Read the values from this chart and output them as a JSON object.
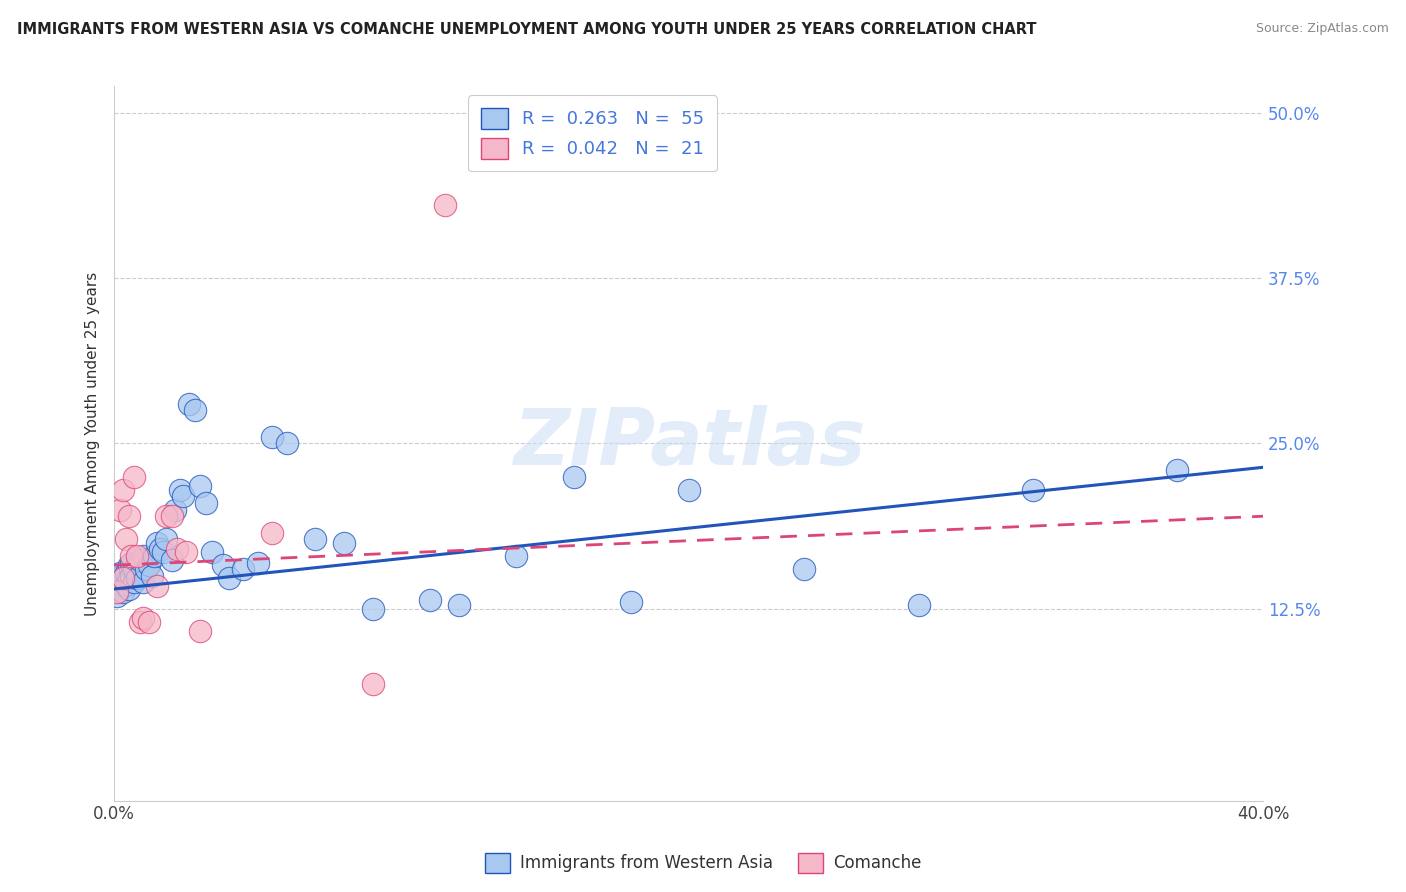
{
  "title": "IMMIGRANTS FROM WESTERN ASIA VS COMANCHE UNEMPLOYMENT AMONG YOUTH UNDER 25 YEARS CORRELATION CHART",
  "source": "Source: ZipAtlas.com",
  "ylabel": "Unemployment Among Youth under 25 years",
  "xlim": [
    0.0,
    0.4
  ],
  "ylim": [
    -0.02,
    0.52
  ],
  "xticks": [
    0.0,
    0.05,
    0.1,
    0.15,
    0.2,
    0.25,
    0.3,
    0.35,
    0.4
  ],
  "yticks_right": [
    0.125,
    0.25,
    0.375,
    0.5
  ],
  "ytick_right_labels": [
    "12.5%",
    "25.0%",
    "37.5%",
    "50.0%"
  ],
  "series1_color": "#a8c8f0",
  "series2_color": "#f5b8c8",
  "trendline1_color": "#2255bb",
  "trendline2_color": "#dd4477",
  "series1_name": "Immigrants from Western Asia",
  "series2_name": "Comanche",
  "blue_scatter_x": [
    0.001,
    0.001,
    0.002,
    0.002,
    0.003,
    0.003,
    0.004,
    0.004,
    0.005,
    0.005,
    0.005,
    0.006,
    0.006,
    0.007,
    0.007,
    0.008,
    0.009,
    0.01,
    0.01,
    0.011,
    0.012,
    0.013,
    0.014,
    0.015,
    0.016,
    0.017,
    0.018,
    0.02,
    0.021,
    0.023,
    0.024,
    0.026,
    0.028,
    0.03,
    0.032,
    0.034,
    0.038,
    0.04,
    0.045,
    0.05,
    0.055,
    0.06,
    0.07,
    0.08,
    0.09,
    0.11,
    0.12,
    0.14,
    0.16,
    0.18,
    0.2,
    0.24,
    0.28,
    0.32,
    0.37
  ],
  "blue_scatter_y": [
    0.135,
    0.148,
    0.143,
    0.152,
    0.138,
    0.148,
    0.143,
    0.152,
    0.14,
    0.148,
    0.158,
    0.15,
    0.16,
    0.145,
    0.155,
    0.148,
    0.162,
    0.145,
    0.165,
    0.155,
    0.158,
    0.15,
    0.165,
    0.175,
    0.17,
    0.168,
    0.178,
    0.162,
    0.2,
    0.215,
    0.21,
    0.28,
    0.275,
    0.218,
    0.205,
    0.168,
    0.158,
    0.148,
    0.155,
    0.16,
    0.255,
    0.25,
    0.178,
    0.175,
    0.125,
    0.132,
    0.128,
    0.165,
    0.225,
    0.13,
    0.215,
    0.155,
    0.128,
    0.215,
    0.23
  ],
  "pink_scatter_x": [
    0.001,
    0.002,
    0.003,
    0.003,
    0.004,
    0.005,
    0.006,
    0.007,
    0.008,
    0.009,
    0.01,
    0.012,
    0.015,
    0.018,
    0.02,
    0.022,
    0.025,
    0.03,
    0.055,
    0.09,
    0.115
  ],
  "pink_scatter_y": [
    0.138,
    0.2,
    0.148,
    0.215,
    0.178,
    0.195,
    0.165,
    0.225,
    0.165,
    0.115,
    0.118,
    0.115,
    0.142,
    0.195,
    0.195,
    0.17,
    0.168,
    0.108,
    0.182,
    0.068,
    0.43
  ],
  "trendline1_x": [
    0.0,
    0.4
  ],
  "trendline1_y": [
    0.14,
    0.232
  ],
  "trendline2_x": [
    0.0,
    0.4
  ],
  "trendline2_y": [
    0.158,
    0.195
  ]
}
